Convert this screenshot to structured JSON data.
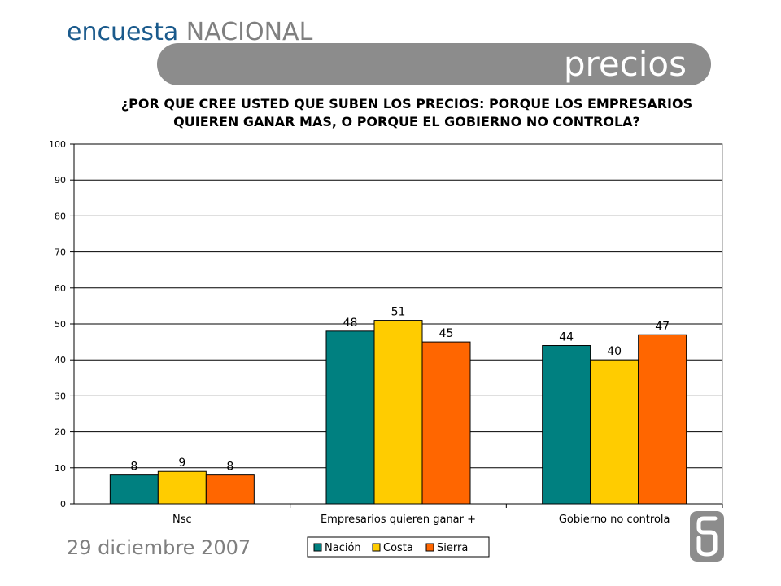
{
  "header": {
    "brand_word1": "encuesta",
    "brand_word2": "NACIONAL",
    "section_title": "precios"
  },
  "question": {
    "line1": "¿POR QUE CREE USTED QUE SUBEN LOS PRECIOS: PORQUE LOS EMPRESARIOS",
    "line2": "QUIEREN GANAR MAS, O PORQUE EL GOBIERNO NO CONTROLA?"
  },
  "footer": {
    "date": "29 diciembre 2007"
  },
  "logo": {
    "icon": "company-logo-icon"
  },
  "chart_data": {
    "type": "bar",
    "title": "",
    "xlabel": "",
    "ylabel": "",
    "categories": [
      "Nsc",
      "Empresarios quieren ganar +",
      "Gobierno no controla"
    ],
    "series": [
      {
        "name": "Nación",
        "values": [
          8,
          48,
          44
        ],
        "color": "#008080"
      },
      {
        "name": "Costa",
        "values": [
          9,
          51,
          40
        ],
        "color": "#ffcc00"
      },
      {
        "name": "Sierra",
        "values": [
          8,
          45,
          47
        ],
        "color": "#ff6600"
      }
    ],
    "ylim": [
      0,
      100
    ],
    "yticks": [
      0,
      10,
      20,
      30,
      40,
      50,
      60,
      70,
      80,
      90,
      100
    ],
    "grid": true,
    "legend_position": "bottom",
    "data_labels": true
  }
}
